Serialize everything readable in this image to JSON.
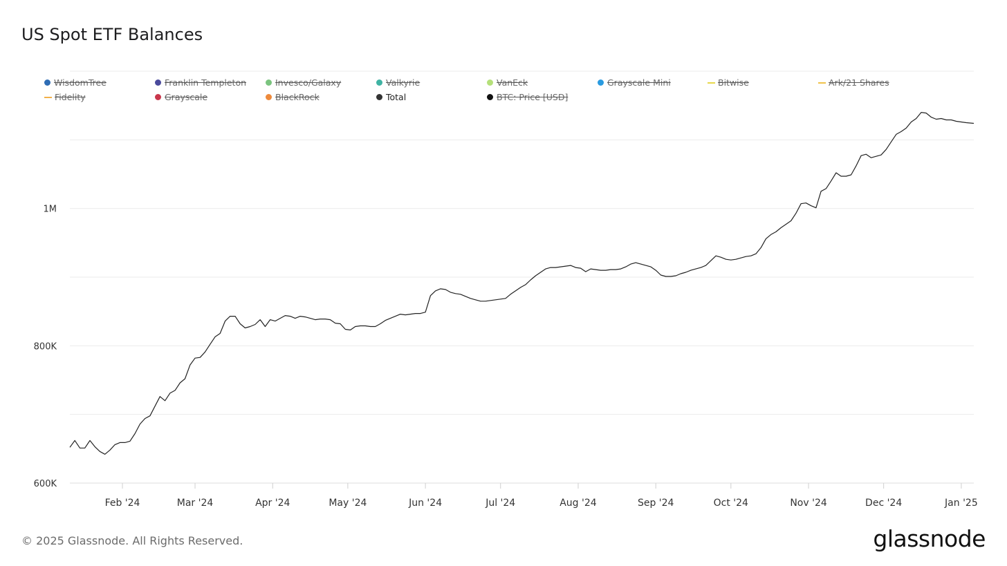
{
  "title": "US Spot ETF Balances",
  "footer": "© 2025 Glassnode. All Rights Reserved.",
  "brand": "glassnode",
  "legend": [
    {
      "label": "WisdomTree",
      "color": "#2f6db5",
      "marker": "dot",
      "active": false
    },
    {
      "label": "Franklin Templeton",
      "color": "#4a4a9c",
      "marker": "dot",
      "active": false
    },
    {
      "label": "Invesco/Galaxy",
      "color": "#7bc47f",
      "marker": "dot",
      "active": false
    },
    {
      "label": "Valkyrie",
      "color": "#3fb3a3",
      "marker": "dot",
      "active": false
    },
    {
      "label": "VanEck",
      "color": "#b5e07a",
      "marker": "dot",
      "active": false
    },
    {
      "label": "Grayscale Mini",
      "color": "#2a9be0",
      "marker": "dot",
      "active": false
    },
    {
      "label": "Bitwise",
      "color": "#e6d84a",
      "marker": "dash",
      "active": false
    },
    {
      "label": "Ark/21 Shares",
      "color": "#f0c24a",
      "marker": "dash",
      "active": false
    },
    {
      "label": "Fidelity",
      "color": "#f2b04a",
      "marker": "dash",
      "active": false
    },
    {
      "label": "Grayscale",
      "color": "#c9374b",
      "marker": "dot",
      "active": false
    },
    {
      "label": "BlackRock",
      "color": "#ee8a3c",
      "marker": "dot",
      "active": false
    },
    {
      "label": "Total",
      "color": "#333333",
      "marker": "dot",
      "active": true
    },
    {
      "label": "BTC: Price [USD]",
      "color": "#111111",
      "marker": "dot",
      "active": false
    }
  ],
  "chart_data": {
    "type": "line",
    "title": "US Spot ETF Balances",
    "xlabel": "",
    "ylabel": "",
    "ylim": [
      600000,
      1200000
    ],
    "yticks": [
      600000,
      800000,
      1000000
    ],
    "ytick_labels": [
      "600K",
      "800K",
      "1M"
    ],
    "grid": true,
    "xlim": [
      "2024-01-11",
      "2025-01-06"
    ],
    "xticks": [
      "2024-02-01",
      "2024-03-01",
      "2024-04-01",
      "2024-05-01",
      "2024-06-01",
      "2024-07-01",
      "2024-08-01",
      "2024-09-01",
      "2024-10-01",
      "2024-11-01",
      "2024-12-01",
      "2025-01-01"
    ],
    "xtick_labels": [
      "Feb '24",
      "Mar '24",
      "Apr '24",
      "May '24",
      "Jun '24",
      "Jul '24",
      "Aug '24",
      "Sep '24",
      "Oct '24",
      "Nov '24",
      "Dec '24",
      "Jan '25"
    ],
    "series": [
      {
        "color": "#222222",
        "points": [
          [
            "2024-01-11",
            652000
          ],
          [
            "2024-01-13",
            662000
          ],
          [
            "2024-01-15",
            651000
          ],
          [
            "2024-01-17",
            651000
          ],
          [
            "2024-01-19",
            662000
          ],
          [
            "2024-01-21",
            653000
          ],
          [
            "2024-01-23",
            646000
          ],
          [
            "2024-01-25",
            642000
          ],
          [
            "2024-01-27",
            648000
          ],
          [
            "2024-01-29",
            656000
          ],
          [
            "2024-01-31",
            659000
          ],
          [
            "2024-02-02",
            659000
          ],
          [
            "2024-02-04",
            661000
          ],
          [
            "2024-02-06",
            672000
          ],
          [
            "2024-02-08",
            686000
          ],
          [
            "2024-02-10",
            694000
          ],
          [
            "2024-02-12",
            698000
          ],
          [
            "2024-02-14",
            712000
          ],
          [
            "2024-02-16",
            726000
          ],
          [
            "2024-02-18",
            720000
          ],
          [
            "2024-02-20",
            731000
          ],
          [
            "2024-02-22",
            735000
          ],
          [
            "2024-02-24",
            746000
          ],
          [
            "2024-02-26",
            752000
          ],
          [
            "2024-02-28",
            772000
          ],
          [
            "2024-03-01",
            782000
          ],
          [
            "2024-03-03",
            783000
          ],
          [
            "2024-03-05",
            791000
          ],
          [
            "2024-03-07",
            802000
          ],
          [
            "2024-03-09",
            813000
          ],
          [
            "2024-03-11",
            818000
          ],
          [
            "2024-03-13",
            836000
          ],
          [
            "2024-03-15",
            843000
          ],
          [
            "2024-03-17",
            843000
          ],
          [
            "2024-03-19",
            832000
          ],
          [
            "2024-03-21",
            826000
          ],
          [
            "2024-03-23",
            828000
          ],
          [
            "2024-03-25",
            831000
          ],
          [
            "2024-03-27",
            838000
          ],
          [
            "2024-03-29",
            828000
          ],
          [
            "2024-03-31",
            838000
          ],
          [
            "2024-04-02",
            836000
          ],
          [
            "2024-04-04",
            840000
          ],
          [
            "2024-04-06",
            844000
          ],
          [
            "2024-04-08",
            843000
          ],
          [
            "2024-04-10",
            840000
          ],
          [
            "2024-04-12",
            843000
          ],
          [
            "2024-04-14",
            842000
          ],
          [
            "2024-04-16",
            840000
          ],
          [
            "2024-04-18",
            838000
          ],
          [
            "2024-04-20",
            839000
          ],
          [
            "2024-04-22",
            839000
          ],
          [
            "2024-04-24",
            838000
          ],
          [
            "2024-04-26",
            833000
          ],
          [
            "2024-04-28",
            832000
          ],
          [
            "2024-04-30",
            824000
          ],
          [
            "2024-05-02",
            823000
          ],
          [
            "2024-05-04",
            828000
          ],
          [
            "2024-05-06",
            829000
          ],
          [
            "2024-05-08",
            829000
          ],
          [
            "2024-05-10",
            828000
          ],
          [
            "2024-05-12",
            828000
          ],
          [
            "2024-05-14",
            832000
          ],
          [
            "2024-05-16",
            837000
          ],
          [
            "2024-05-18",
            840000
          ],
          [
            "2024-05-20",
            843000
          ],
          [
            "2024-05-22",
            846000
          ],
          [
            "2024-05-24",
            845000
          ],
          [
            "2024-05-26",
            846000
          ],
          [
            "2024-05-28",
            847000
          ],
          [
            "2024-05-30",
            847000
          ],
          [
            "2024-06-01",
            849000
          ],
          [
            "2024-06-03",
            873000
          ],
          [
            "2024-06-05",
            880000
          ],
          [
            "2024-06-07",
            883000
          ],
          [
            "2024-06-09",
            882000
          ],
          [
            "2024-06-11",
            878000
          ],
          [
            "2024-06-13",
            876000
          ],
          [
            "2024-06-15",
            875000
          ],
          [
            "2024-06-17",
            872000
          ],
          [
            "2024-06-19",
            869000
          ],
          [
            "2024-06-21",
            867000
          ],
          [
            "2024-06-23",
            865000
          ],
          [
            "2024-06-25",
            865000
          ],
          [
            "2024-06-27",
            866000
          ],
          [
            "2024-06-29",
            867000
          ],
          [
            "2024-07-01",
            868000
          ],
          [
            "2024-07-03",
            869000
          ],
          [
            "2024-07-05",
            875000
          ],
          [
            "2024-07-07",
            880000
          ],
          [
            "2024-07-09",
            885000
          ],
          [
            "2024-07-11",
            889000
          ],
          [
            "2024-07-13",
            896000
          ],
          [
            "2024-07-15",
            902000
          ],
          [
            "2024-07-17",
            907000
          ],
          [
            "2024-07-19",
            912000
          ],
          [
            "2024-07-21",
            914000
          ],
          [
            "2024-07-23",
            914000
          ],
          [
            "2024-07-25",
            915000
          ],
          [
            "2024-07-27",
            916000
          ],
          [
            "2024-07-29",
            917000
          ],
          [
            "2024-07-31",
            914000
          ],
          [
            "2024-08-02",
            913000
          ],
          [
            "2024-08-04",
            908000
          ],
          [
            "2024-08-06",
            912000
          ],
          [
            "2024-08-08",
            911000
          ],
          [
            "2024-08-10",
            910000
          ],
          [
            "2024-08-12",
            910000
          ],
          [
            "2024-08-14",
            911000
          ],
          [
            "2024-08-16",
            911000
          ],
          [
            "2024-08-18",
            912000
          ],
          [
            "2024-08-20",
            915000
          ],
          [
            "2024-08-22",
            919000
          ],
          [
            "2024-08-24",
            921000
          ],
          [
            "2024-08-26",
            919000
          ],
          [
            "2024-08-28",
            917000
          ],
          [
            "2024-08-30",
            915000
          ],
          [
            "2024-09-01",
            910000
          ],
          [
            "2024-09-03",
            903000
          ],
          [
            "2024-09-05",
            901000
          ],
          [
            "2024-09-07",
            901000
          ],
          [
            "2024-09-09",
            902000
          ],
          [
            "2024-09-11",
            905000
          ],
          [
            "2024-09-13",
            907000
          ],
          [
            "2024-09-15",
            910000
          ],
          [
            "2024-09-17",
            912000
          ],
          [
            "2024-09-19",
            914000
          ],
          [
            "2024-09-21",
            917000
          ],
          [
            "2024-09-23",
            924000
          ],
          [
            "2024-09-25",
            931000
          ],
          [
            "2024-09-27",
            929000
          ],
          [
            "2024-09-29",
            926000
          ],
          [
            "2024-10-01",
            925000
          ],
          [
            "2024-10-03",
            926000
          ],
          [
            "2024-10-05",
            928000
          ],
          [
            "2024-10-07",
            930000
          ],
          [
            "2024-10-09",
            931000
          ],
          [
            "2024-10-11",
            934000
          ],
          [
            "2024-10-13",
            943000
          ],
          [
            "2024-10-15",
            956000
          ],
          [
            "2024-10-17",
            962000
          ],
          [
            "2024-10-19",
            966000
          ],
          [
            "2024-10-21",
            972000
          ],
          [
            "2024-10-23",
            977000
          ],
          [
            "2024-10-25",
            982000
          ],
          [
            "2024-10-27",
            993000
          ],
          [
            "2024-10-29",
            1007000
          ],
          [
            "2024-10-31",
            1008000
          ],
          [
            "2024-11-02",
            1004000
          ],
          [
            "2024-11-04",
            1001000
          ],
          [
            "2024-11-06",
            1025000
          ],
          [
            "2024-11-08",
            1029000
          ],
          [
            "2024-11-10",
            1040000
          ],
          [
            "2024-11-12",
            1052000
          ],
          [
            "2024-11-14",
            1047000
          ],
          [
            "2024-11-16",
            1047000
          ],
          [
            "2024-11-18",
            1049000
          ],
          [
            "2024-11-20",
            1062000
          ],
          [
            "2024-11-22",
            1077000
          ],
          [
            "2024-11-24",
            1079000
          ],
          [
            "2024-11-26",
            1074000
          ],
          [
            "2024-11-28",
            1076000
          ],
          [
            "2024-11-30",
            1078000
          ],
          [
            "2024-12-02",
            1086000
          ],
          [
            "2024-12-04",
            1097000
          ],
          [
            "2024-12-06",
            1108000
          ],
          [
            "2024-12-08",
            1112000
          ],
          [
            "2024-12-10",
            1117000
          ],
          [
            "2024-12-12",
            1126000
          ],
          [
            "2024-12-14",
            1131000
          ],
          [
            "2024-12-16",
            1140000
          ],
          [
            "2024-12-18",
            1139000
          ],
          [
            "2024-12-20",
            1133000
          ],
          [
            "2024-12-22",
            1130000
          ],
          [
            "2024-12-24",
            1131000
          ],
          [
            "2024-12-26",
            1129000
          ],
          [
            "2024-12-28",
            1129000
          ],
          [
            "2024-12-30",
            1127000
          ],
          [
            "2025-01-01",
            1126000
          ],
          [
            "2025-01-03",
            1125000
          ],
          [
            "2025-01-06",
            1124000
          ]
        ]
      }
    ]
  }
}
